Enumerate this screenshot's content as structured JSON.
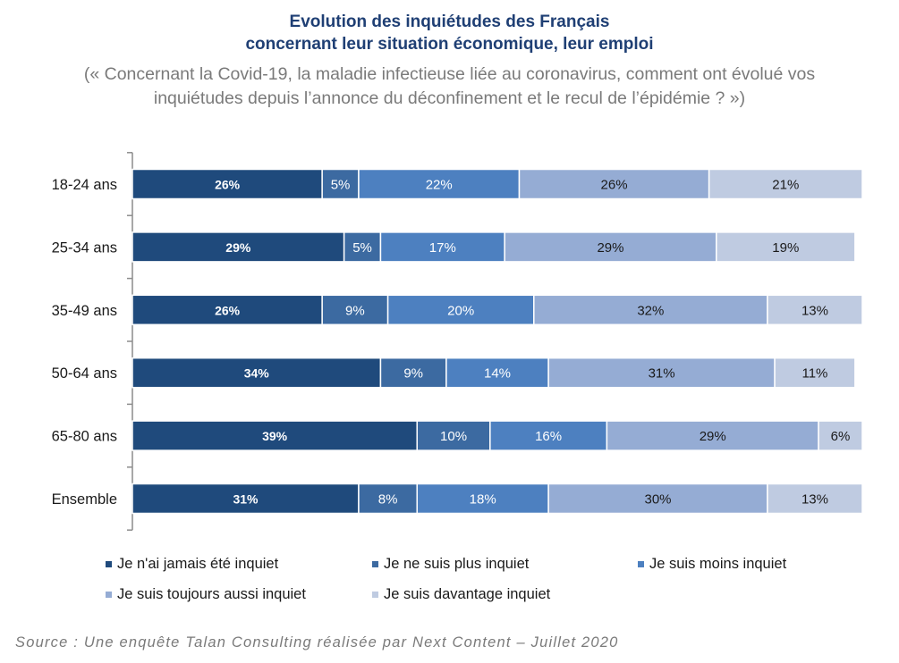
{
  "title_line1": "Evolution des inquiétudes des Français",
  "title_line2": "concernant leur situation économique, leur emploi",
  "subtitle_line1": "(« Concernant la Covid-19, la maladie infectieuse liée au coronavirus, comment ont évolué vos",
  "subtitle_line2": "inquiétudes depuis l’annonce du déconfinement et le recul de l’épidémie ? »)",
  "source": "Source : Une enquête Talan Consulting réalisée par Next Content – Juillet 2020",
  "chart_data": {
    "type": "bar",
    "orientation": "horizontal",
    "stacked": "100%",
    "categories": [
      "18-24 ans",
      "25-34 ans",
      "35-49 ans",
      "50-64 ans",
      "65-80 ans",
      "Ensemble"
    ],
    "series": [
      {
        "name": "Je n'ai jamais été inquiet",
        "color": "#1f4a7c",
        "label_color": "#ffffff",
        "label_bold": true,
        "values": [
          26,
          29,
          26,
          34,
          39,
          31
        ]
      },
      {
        "name": "Je ne suis plus inquiet",
        "color": "#3c6aa1",
        "label_color": "#ffffff",
        "label_bold": false,
        "values": [
          5,
          5,
          9,
          9,
          10,
          8
        ]
      },
      {
        "name": "Je suis moins inquiet",
        "color": "#4d80c0",
        "label_color": "#ffffff",
        "label_bold": false,
        "values": [
          22,
          17,
          20,
          14,
          16,
          18
        ]
      },
      {
        "name": "Je suis toujours aussi inquiet",
        "color": "#95acd4",
        "label_color": "#1a1a1a",
        "label_bold": false,
        "values": [
          26,
          29,
          32,
          31,
          29,
          30
        ]
      },
      {
        "name": "Je suis davantage inquiet",
        "color": "#bfcbe1",
        "label_color": "#1a1a1a",
        "label_bold": false,
        "values": [
          21,
          19,
          13,
          11,
          6,
          13
        ]
      }
    ],
    "value_suffix": "%",
    "legend_position": "bottom",
    "grid": false
  }
}
